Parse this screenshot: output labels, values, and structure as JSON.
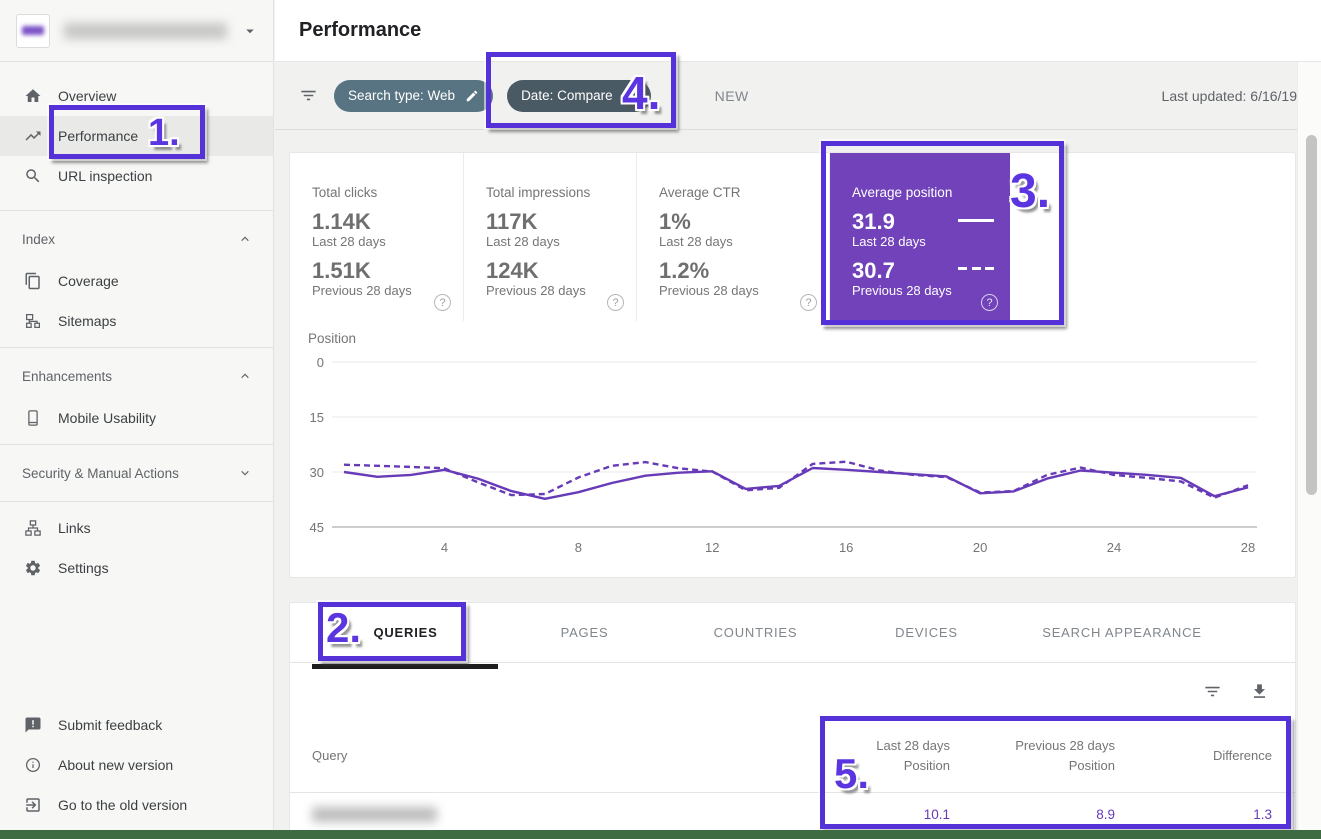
{
  "header": {
    "title": "Performance"
  },
  "filter_bar": {
    "chips": [
      {
        "label": "Search type: Web",
        "color": "#587482"
      },
      {
        "label": "Date: Compare",
        "color": "#4a5a64"
      }
    ],
    "new_badge": "NEW",
    "last_updated": "Last updated: 6/16/19"
  },
  "sidebar": {
    "items": [
      {
        "label": "Overview",
        "icon": "home-icon"
      },
      {
        "label": "Performance",
        "icon": "trending-up-icon",
        "selected": true
      },
      {
        "label": "URL inspection",
        "icon": "search-icon"
      }
    ],
    "sections": [
      {
        "label": "Index",
        "state": "expanded",
        "items": [
          {
            "label": "Coverage",
            "icon": "pages-icon"
          },
          {
            "label": "Sitemaps",
            "icon": "sitemap-icon"
          }
        ]
      },
      {
        "label": "Enhancements",
        "state": "expanded",
        "items": [
          {
            "label": "Mobile Usability",
            "icon": "mobile-icon"
          }
        ]
      },
      {
        "label": "Security & Manual Actions",
        "state": "collapsed",
        "items": []
      }
    ],
    "secondary_items": [
      {
        "label": "Links",
        "icon": "links-icon"
      },
      {
        "label": "Settings",
        "icon": "gear-icon"
      }
    ],
    "footer_items": [
      {
        "label": "Submit feedback",
        "icon": "feedback-icon"
      },
      {
        "label": "About new version",
        "icon": "info-icon"
      },
      {
        "label": "Go to the old version",
        "icon": "exit-icon"
      }
    ]
  },
  "metrics": {
    "cards": [
      {
        "label": "Total clicks",
        "value_current": "1.14K",
        "caption_current": "Last 28 days",
        "value_previous": "1.51K",
        "caption_previous": "Previous 28 days"
      },
      {
        "label": "Total impressions",
        "value_current": "117K",
        "caption_current": "Last 28 days",
        "value_previous": "124K",
        "caption_previous": "Previous 28 days"
      },
      {
        "label": "Average CTR",
        "value_current": "1%",
        "caption_current": "Last 28 days",
        "value_previous": "1.2%",
        "caption_previous": "Previous 28 days"
      },
      {
        "label": "Average position",
        "value_current": "31.9",
        "caption_current": "Last 28 days",
        "value_previous": "30.7",
        "caption_previous": "Previous 28 days",
        "selected": true
      }
    ]
  },
  "tabs": [
    "QUERIES",
    "PAGES",
    "COUNTRIES",
    "DEVICES",
    "SEARCH APPEARANCE"
  ],
  "table": {
    "columns": {
      "query": "Query",
      "col1_line1": "Last 28 days",
      "col1_line2": "Position",
      "col2_line1": "Previous 28 days",
      "col2_line2": "Position",
      "col3": "Difference"
    },
    "rows": [
      {
        "position_last": "10.1",
        "position_previous": "8.9",
        "difference": "1.3"
      }
    ]
  },
  "annotations": {
    "n1": "1.",
    "n2": "2.",
    "n3": "3.",
    "n4": "4.",
    "n5": "5."
  },
  "chart_data": {
    "type": "line",
    "title": "Position",
    "ylabel": "Position",
    "y_axis_inverted": true,
    "ylim": [
      0,
      45
    ],
    "yticks": [
      0,
      15,
      30,
      45
    ],
    "xticks": [
      4,
      8,
      12,
      16,
      20,
      24,
      28
    ],
    "x_range": [
      1,
      28
    ],
    "color": "#673ab7",
    "series": [
      {
        "name": "Last 28 days",
        "style": "solid",
        "values": [
          30.0,
          31.3,
          30.8,
          29.4,
          31.8,
          35.2,
          37.3,
          35.5,
          33.0,
          31.0,
          30.2,
          29.8,
          34.6,
          33.8,
          28.9,
          29.4,
          30.0,
          30.6,
          31.2,
          35.8,
          35.3,
          31.8,
          29.6,
          30.2,
          30.8,
          31.6,
          36.6,
          34.2
        ]
      },
      {
        "name": "Previous 28 days",
        "style": "dashed",
        "values": [
          28.0,
          28.3,
          28.6,
          29.0,
          32.8,
          36.3,
          36.0,
          31.5,
          28.3,
          27.3,
          29.0,
          29.9,
          35.0,
          34.3,
          27.8,
          27.2,
          29.6,
          30.8,
          31.4,
          35.6,
          35.2,
          30.8,
          28.8,
          30.8,
          31.6,
          32.6,
          37.0,
          33.6
        ]
      }
    ],
    "legend": "solid = Last 28 days, dashed = Previous 28 days (shown on Average position card)"
  },
  "colors": {
    "accent_purple": "#7142b9",
    "annotation_purple": "#5532d7",
    "line_purple": "#673ab7",
    "bottom_bar_green": "#3e6b41"
  }
}
